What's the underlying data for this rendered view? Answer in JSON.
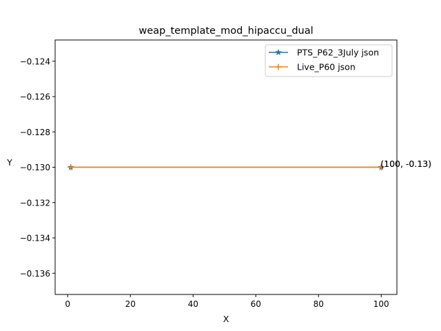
{
  "chart_data": {
    "type": "line",
    "title": "weap_template_mod_hipaccu_dual",
    "xlabel": "X",
    "ylabel": "Y",
    "xlim": [
      -4.0,
      105.0
    ],
    "ylim": [
      -0.1372,
      -0.1228
    ],
    "x_ticks": [
      0,
      20,
      40,
      60,
      80,
      100
    ],
    "y_ticks": [
      -0.136,
      -0.134,
      -0.132,
      -0.13,
      -0.128,
      -0.126,
      -0.124
    ],
    "x_tick_labels": [
      "0",
      "20",
      "40",
      "60",
      "80",
      "100"
    ],
    "y_tick_labels": [
      "−0.136",
      "−0.134",
      "−0.132",
      "−0.130",
      "−0.128",
      "−0.126",
      "−0.124"
    ],
    "legend_position": "top-right",
    "series": [
      {
        "name": "PTS_P62_3July json",
        "color": "#1f77b4",
        "marker": "star",
        "x": [
          1,
          100
        ],
        "y": [
          -0.13,
          -0.13
        ]
      },
      {
        "name": "Live_P60 json",
        "color": "#ff7f0e",
        "marker": "plus",
        "x": [
          1,
          100
        ],
        "y": [
          -0.13,
          -0.13
        ]
      }
    ],
    "annotations": [
      {
        "text": "(100, -0.13)",
        "x": 100,
        "y": -0.13
      },
      {
        "text": "(100, -0.13)",
        "x": 100,
        "y": -0.13
      }
    ]
  }
}
